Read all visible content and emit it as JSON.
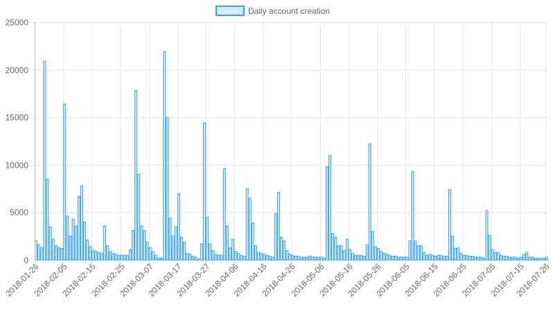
{
  "chart_data": {
    "type": "bar",
    "legend": {
      "label": "Daily account creation",
      "position": "top-center"
    },
    "colors": {
      "bar_fill": "#d6ebfa",
      "bar_stroke": "#36a2eb",
      "grid": "#e6e6e6",
      "text": "#666666"
    },
    "grid": true,
    "xlabel": "",
    "ylabel": "",
    "ylim": [
      0,
      25000
    ],
    "y_ticks": [
      "0",
      "5000",
      "10000",
      "15000",
      "20000",
      "25000"
    ],
    "x_ticks": [
      "2018-01-26",
      "2018-02-05",
      "2018-02-15",
      "2018-02-25",
      "2018-03-07",
      "2018-03-17",
      "2018-03-27",
      "2018-04-06",
      "2018-04-16",
      "2018-04-26",
      "2018-05-06",
      "2018-05-16",
      "2018-05-26",
      "2018-06-05",
      "2018-06-15",
      "2018-06-25",
      "2018-07-05",
      "2018-07-15",
      "2018-07-26"
    ],
    "x_start": "2018-01-26",
    "x_end": "2018-07-27",
    "series": [
      {
        "name": "Daily account creation",
        "values": [
          2000,
          1600,
          1300,
          20900,
          8500,
          3500,
          2200,
          1500,
          1300,
          1200,
          16400,
          4600,
          2500,
          4300,
          3600,
          6700,
          7800,
          4000,
          2100,
          1400,
          1000,
          900,
          800,
          700,
          3600,
          1500,
          900,
          700,
          600,
          500,
          500,
          500,
          500,
          1100,
          3100,
          17800,
          9000,
          3600,
          3100,
          1900,
          1300,
          900,
          500,
          200,
          200,
          21900,
          15000,
          4400,
          2500,
          3500,
          7000,
          2400,
          1900,
          700,
          600,
          400,
          300,
          100,
          1700,
          14400,
          4500,
          1700,
          1000,
          600,
          500,
          500,
          9600,
          3600,
          1300,
          2200,
          900,
          700,
          500,
          400,
          7500,
          6500,
          3900,
          1500,
          800,
          700,
          600,
          500,
          400,
          300,
          4900,
          7100,
          2400,
          2000,
          1000,
          600,
          500,
          400,
          400,
          300,
          300,
          300,
          400,
          300,
          300,
          300,
          300,
          200,
          9800,
          11000,
          2800,
          2400,
          1500,
          1500,
          1000,
          2200,
          1100,
          700,
          500,
          500,
          500,
          400,
          1600,
          12200,
          3000,
          1400,
          1200,
          900,
          700,
          600,
          500,
          400,
          400,
          300,
          300,
          300,
          300,
          2000,
          9300,
          2000,
          1500,
          1500,
          800,
          500,
          600,
          500,
          400,
          500,
          500,
          400,
          400,
          7400,
          2500,
          1200,
          1300,
          700,
          500,
          500,
          400,
          400,
          300,
          300,
          300,
          200,
          5200,
          2600,
          1100,
          800,
          800,
          500,
          400,
          400,
          300,
          300,
          300,
          200,
          300,
          600,
          800,
          300,
          300,
          200,
          200,
          200,
          200,
          300
        ]
      }
    ]
  }
}
